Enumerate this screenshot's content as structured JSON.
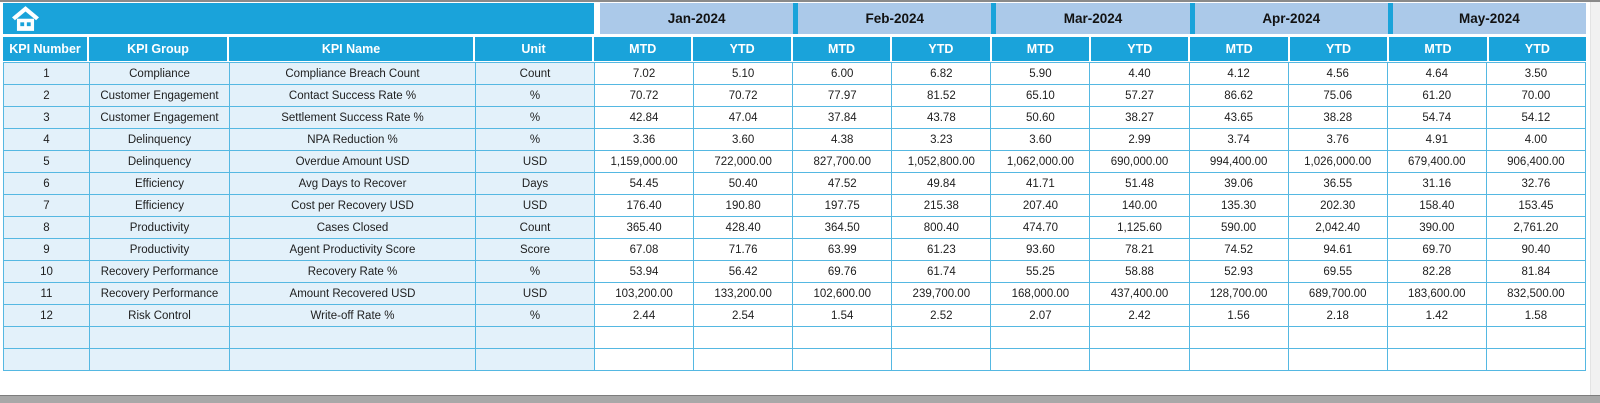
{
  "colors": {
    "header_cyan": "#1aa3da",
    "month_band_blue": "#abc9e9",
    "row_light_blue": "#e3f1fa",
    "grid_border_cyan": "#55b8e2",
    "data_cell_white": "#ffffff"
  },
  "icons": {
    "home": "home-icon"
  },
  "table": {
    "left_headers": [
      "KPI Number",
      "KPI Group",
      "KPI Name",
      "Unit"
    ],
    "months": [
      "Jan-2024",
      "Feb-2024",
      "Mar-2024",
      "Apr-2024",
      "May-2024"
    ],
    "period_labels": [
      "MTD",
      "YTD"
    ],
    "rows": [
      {
        "kpi_number": "1",
        "kpi_group": "Compliance",
        "kpi_name": "Compliance Breach Count",
        "unit": "Count",
        "values": [
          "7.02",
          "5.10",
          "6.00",
          "6.82",
          "5.90",
          "4.40",
          "4.12",
          "4.56",
          "4.64",
          "3.50"
        ]
      },
      {
        "kpi_number": "2",
        "kpi_group": "Customer Engagement",
        "kpi_name": "Contact Success Rate %",
        "unit": "%",
        "values": [
          "70.72",
          "70.72",
          "77.97",
          "81.52",
          "65.10",
          "57.27",
          "86.62",
          "75.06",
          "61.20",
          "70.00"
        ]
      },
      {
        "kpi_number": "3",
        "kpi_group": "Customer Engagement",
        "kpi_name": "Settlement Success Rate %",
        "unit": "%",
        "values": [
          "42.84",
          "47.04",
          "37.84",
          "43.78",
          "50.60",
          "38.27",
          "43.65",
          "38.28",
          "54.74",
          "54.12"
        ]
      },
      {
        "kpi_number": "4",
        "kpi_group": "Delinquency",
        "kpi_name": "NPA Reduction %",
        "unit": "%",
        "values": [
          "3.36",
          "3.60",
          "4.38",
          "3.23",
          "3.60",
          "2.99",
          "3.74",
          "3.76",
          "4.91",
          "4.00"
        ]
      },
      {
        "kpi_number": "5",
        "kpi_group": "Delinquency",
        "kpi_name": "Overdue Amount USD",
        "unit": "USD",
        "values": [
          "1,159,000.00",
          "722,000.00",
          "827,700.00",
          "1,052,800.00",
          "1,062,000.00",
          "690,000.00",
          "994,400.00",
          "1,026,000.00",
          "679,400.00",
          "906,400.00"
        ]
      },
      {
        "kpi_number": "6",
        "kpi_group": "Efficiency",
        "kpi_name": "Avg Days to Recover",
        "unit": "Days",
        "values": [
          "54.45",
          "50.40",
          "47.52",
          "49.84",
          "41.71",
          "51.48",
          "39.06",
          "36.55",
          "31.16",
          "32.76"
        ]
      },
      {
        "kpi_number": "7",
        "kpi_group": "Efficiency",
        "kpi_name": "Cost per Recovery USD",
        "unit": "USD",
        "values": [
          "176.40",
          "190.80",
          "197.75",
          "215.38",
          "207.40",
          "140.00",
          "135.30",
          "202.30",
          "158.40",
          "153.45"
        ]
      },
      {
        "kpi_number": "8",
        "kpi_group": "Productivity",
        "kpi_name": "Cases Closed",
        "unit": "Count",
        "values": [
          "365.40",
          "428.40",
          "364.50",
          "800.40",
          "474.70",
          "1,125.60",
          "590.00",
          "2,042.40",
          "390.00",
          "2,761.20"
        ]
      },
      {
        "kpi_number": "9",
        "kpi_group": "Productivity",
        "kpi_name": "Agent Productivity Score",
        "unit": "Score",
        "values": [
          "67.08",
          "71.76",
          "63.99",
          "61.23",
          "93.60",
          "78.21",
          "74.52",
          "94.61",
          "69.70",
          "90.40"
        ]
      },
      {
        "kpi_number": "10",
        "kpi_group": "Recovery Performance",
        "kpi_name": "Recovery Rate %",
        "unit": "%",
        "values": [
          "53.94",
          "56.42",
          "69.76",
          "61.74",
          "55.25",
          "58.88",
          "52.93",
          "69.55",
          "82.28",
          "81.84"
        ]
      },
      {
        "kpi_number": "11",
        "kpi_group": "Recovery Performance",
        "kpi_name": "Amount Recovered USD",
        "unit": "USD",
        "values": [
          "103,200.00",
          "133,200.00",
          "102,600.00",
          "239,700.00",
          "168,000.00",
          "437,400.00",
          "128,700.00",
          "689,700.00",
          "183,600.00",
          "832,500.00"
        ]
      },
      {
        "kpi_number": "12",
        "kpi_group": "Risk Control",
        "kpi_name": "Write-off Rate %",
        "unit": "%",
        "values": [
          "2.44",
          "2.54",
          "1.54",
          "2.52",
          "2.07",
          "2.42",
          "1.56",
          "2.18",
          "1.42",
          "1.58"
        ]
      }
    ],
    "empty_rows": 2
  }
}
